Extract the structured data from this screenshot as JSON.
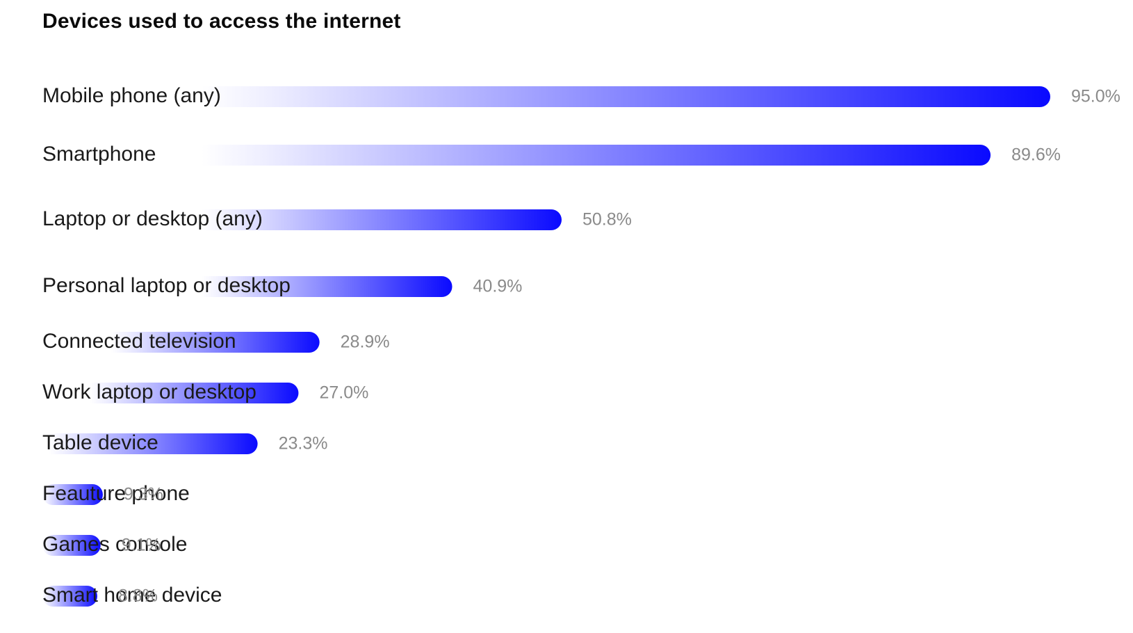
{
  "title": "Devices used to access the internet",
  "colors": {
    "bar_start": "#ffffff",
    "bar_end": "#0a0aff",
    "label": "#1a1a1a",
    "value_label": "#8a8a8a"
  },
  "chart_data": {
    "type": "bar",
    "orientation": "horizontal",
    "title": "Devices used to access the internet",
    "categories": [
      "Mobile phone (any)",
      "Smartphone",
      "Laptop or desktop (any)",
      "Personal laptop or desktop",
      "Connected television",
      "Work laptop or desktop",
      "Table device",
      "Feauture phone",
      "Games console",
      "Smart home device"
    ],
    "values": [
      95.0,
      89.6,
      50.8,
      40.9,
      28.9,
      27.0,
      23.3,
      9.3,
      9.1,
      8.8
    ],
    "value_labels": [
      "95.0%",
      "89.6%",
      "50.8%",
      "40.9%",
      "28.9%",
      "27.0%",
      "23.3%",
      "9.3%",
      "9.1%",
      "8.8%"
    ],
    "xlabel": "",
    "ylabel": "",
    "xlim": [
      0,
      100
    ],
    "grid": false,
    "legend": "none"
  }
}
